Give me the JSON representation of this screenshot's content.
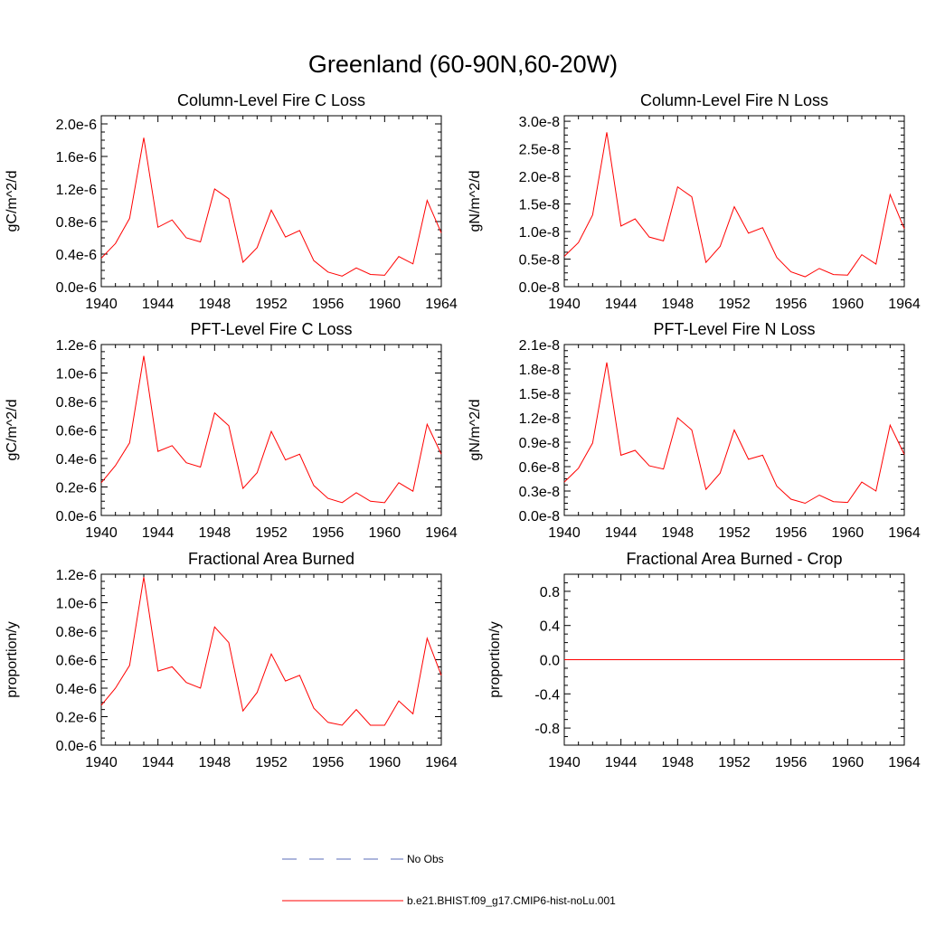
{
  "figure": {
    "title": "Greenland (60-90N,60-20W)",
    "background": "#ffffff",
    "series_color": "#ff0000",
    "obs_color": "#5a6bb8"
  },
  "legend": {
    "items": [
      {
        "label": "No Obs",
        "style": "dashed",
        "color": "#5a6bb8"
      },
      {
        "label": "b.e21.BHIST.f09_g17.CMIP6-hist-noLu.001",
        "style": "solid",
        "color": "#ff0000"
      }
    ]
  },
  "chart_data": [
    {
      "type": "line",
      "title": "Column-Level Fire C Loss",
      "xlabel": "",
      "ylabel": "gC/m^2/d",
      "xlim": [
        1940,
        1964
      ],
      "ylim": [
        0,
        2.1e-06
      ],
      "xticks": [
        1940,
        1944,
        1948,
        1952,
        1956,
        1960,
        1964
      ],
      "xtick_labels": [
        "1940",
        "1944",
        "1948",
        "1952",
        "1956",
        "1960",
        "1964"
      ],
      "yticks": [
        0,
        4e-07,
        8e-07,
        1.2e-06,
        1.6e-06,
        2e-06
      ],
      "ytick_labels": [
        "0.0e-6",
        "0.4e-6",
        "0.8e-6",
        "1.2e-6",
        "1.6e-6",
        "2.0e-6"
      ],
      "grid": false,
      "x": [
        1940,
        1941,
        1942,
        1943,
        1944,
        1945,
        1946,
        1947,
        1948,
        1949,
        1950,
        1951,
        1952,
        1953,
        1954,
        1955,
        1956,
        1957,
        1958,
        1959,
        1960,
        1961,
        1962,
        1963,
        1964
      ],
      "series": [
        {
          "values": [
            3.5e-07,
            5.3e-07,
            8.4e-07,
            1.83e-06,
            7.3e-07,
            8.2e-07,
            6e-07,
            5.5e-07,
            1.2e-06,
            1.08e-06,
            3e-07,
            4.8e-07,
            9.4e-07,
            6.1e-07,
            6.9e-07,
            3.2e-07,
            1.8e-07,
            1.3e-07,
            2.3e-07,
            1.5e-07,
            1.4e-07,
            3.7e-07,
            2.8e-07,
            1.06e-06,
            6.6e-07
          ]
        }
      ]
    },
    {
      "type": "line",
      "title": "Column-Level Fire N Loss",
      "xlabel": "",
      "ylabel": "gN/m^2/d",
      "xlim": [
        1940,
        1964
      ],
      "ylim": [
        0,
        3.1e-08
      ],
      "xticks": [
        1940,
        1944,
        1948,
        1952,
        1956,
        1960,
        1964
      ],
      "xtick_labels": [
        "1940",
        "1944",
        "1948",
        "1952",
        "1956",
        "1960",
        "1964"
      ],
      "yticks": [
        0,
        5e-09,
        1e-08,
        1.5e-08,
        2e-08,
        2.5e-08,
        3e-08
      ],
      "ytick_labels": [
        "0.0e-8",
        "0.5e-8",
        "1.0e-8",
        "1.5e-8",
        "2.0e-8",
        "2.5e-8",
        "3.0e-8"
      ],
      "grid": false,
      "x": [
        1940,
        1941,
        1942,
        1943,
        1944,
        1945,
        1946,
        1947,
        1948,
        1949,
        1950,
        1951,
        1952,
        1953,
        1954,
        1955,
        1956,
        1957,
        1958,
        1959,
        1960,
        1961,
        1962,
        1963,
        1964
      ],
      "series": [
        {
          "values": [
            5.5e-09,
            8e-09,
            1.3e-08,
            2.8e-08,
            1.1e-08,
            1.23e-08,
            9e-09,
            8.3e-09,
            1.81e-08,
            1.63e-08,
            4.4e-09,
            7.3e-09,
            1.45e-08,
            9.7e-09,
            1.07e-08,
            5.3e-09,
            2.7e-09,
            1.8e-09,
            3.3e-09,
            2.2e-09,
            2.1e-09,
            5.8e-09,
            4.1e-09,
            1.67e-08,
            1.05e-08
          ]
        }
      ]
    },
    {
      "type": "line",
      "title": "PFT-Level Fire C Loss",
      "xlabel": "",
      "ylabel": "gC/m^2/d",
      "xlim": [
        1940,
        1964
      ],
      "ylim": [
        0,
        1.2e-06
      ],
      "xticks": [
        1940,
        1944,
        1948,
        1952,
        1956,
        1960,
        1964
      ],
      "xtick_labels": [
        "1940",
        "1944",
        "1948",
        "1952",
        "1956",
        "1960",
        "1964"
      ],
      "yticks": [
        0,
        2e-07,
        4e-07,
        6e-07,
        8e-07,
        1e-06,
        1.2e-06
      ],
      "ytick_labels": [
        "0.0e-6",
        "0.2e-6",
        "0.4e-6",
        "0.6e-6",
        "0.8e-6",
        "1.0e-6",
        "1.2e-6"
      ],
      "grid": false,
      "x": [
        1940,
        1941,
        1942,
        1943,
        1944,
        1945,
        1946,
        1947,
        1948,
        1949,
        1950,
        1951,
        1952,
        1953,
        1954,
        1955,
        1956,
        1957,
        1958,
        1959,
        1960,
        1961,
        1962,
        1963,
        1964
      ],
      "series": [
        {
          "values": [
            2.3e-07,
            3.5e-07,
            5.1e-07,
            1.12e-06,
            4.5e-07,
            4.9e-07,
            3.7e-07,
            3.4e-07,
            7.2e-07,
            6.3e-07,
            1.9e-07,
            3e-07,
            5.9e-07,
            3.9e-07,
            4.3e-07,
            2.1e-07,
            1.2e-07,
            9e-08,
            1.6e-07,
            1e-07,
            9e-08,
            2.3e-07,
            1.7e-07,
            6.4e-07,
            4.3e-07
          ]
        }
      ]
    },
    {
      "type": "line",
      "title": "PFT-Level Fire N Loss",
      "xlabel": "",
      "ylabel": "gN/m^2/d",
      "xlim": [
        1940,
        1964
      ],
      "ylim": [
        0,
        2.1e-08
      ],
      "xticks": [
        1940,
        1944,
        1948,
        1952,
        1956,
        1960,
        1964
      ],
      "xtick_labels": [
        "1940",
        "1944",
        "1948",
        "1952",
        "1956",
        "1960",
        "1964"
      ],
      "yticks": [
        0,
        3e-09,
        6e-09,
        9e-09,
        1.2e-08,
        1.5e-08,
        1.8e-08,
        2.1e-08
      ],
      "ytick_labels": [
        "0.0e-8",
        "0.3e-8",
        "0.6e-8",
        "0.9e-8",
        "1.2e-8",
        "1.5e-8",
        "1.8e-8",
        "2.1e-8"
      ],
      "grid": false,
      "x": [
        1940,
        1941,
        1942,
        1943,
        1944,
        1945,
        1946,
        1947,
        1948,
        1949,
        1950,
        1951,
        1952,
        1953,
        1954,
        1955,
        1956,
        1957,
        1958,
        1959,
        1960,
        1961,
        1962,
        1963,
        1964
      ],
      "series": [
        {
          "values": [
            4.1e-09,
            5.8e-09,
            8.9e-09,
            1.88e-08,
            7.4e-09,
            8e-09,
            6.1e-09,
            5.7e-09,
            1.2e-08,
            1.05e-08,
            3.2e-09,
            5.2e-09,
            1.05e-08,
            6.9e-09,
            7.4e-09,
            3.6e-09,
            2e-09,
            1.5e-09,
            2.5e-09,
            1.7e-09,
            1.6e-09,
            4.1e-09,
            3e-09,
            1.11e-08,
            7.5e-09
          ]
        }
      ]
    },
    {
      "type": "line",
      "title": "Fractional Area Burned",
      "xlabel": "",
      "ylabel": "proportion/y",
      "xlim": [
        1940,
        1964
      ],
      "ylim": [
        0,
        1.2e-06
      ],
      "xticks": [
        1940,
        1944,
        1948,
        1952,
        1956,
        1960,
        1964
      ],
      "xtick_labels": [
        "1940",
        "1944",
        "1948",
        "1952",
        "1956",
        "1960",
        "1964"
      ],
      "yticks": [
        0,
        2e-07,
        4e-07,
        6e-07,
        8e-07,
        1e-06,
        1.2e-06
      ],
      "ytick_labels": [
        "0.0e-6",
        "0.2e-6",
        "0.4e-6",
        "0.6e-6",
        "0.8e-6",
        "1.0e-6",
        "1.2e-6"
      ],
      "grid": false,
      "x": [
        1940,
        1941,
        1942,
        1943,
        1944,
        1945,
        1946,
        1947,
        1948,
        1949,
        1950,
        1951,
        1952,
        1953,
        1954,
        1955,
        1956,
        1957,
        1958,
        1959,
        1960,
        1961,
        1962,
        1963,
        1964
      ],
      "series": [
        {
          "values": [
            2.8e-07,
            4e-07,
            5.6e-07,
            1.18e-06,
            5.2e-07,
            5.5e-07,
            4.4e-07,
            4e-07,
            8.3e-07,
            7.2e-07,
            2.4e-07,
            3.7e-07,
            6.4e-07,
            4.5e-07,
            4.9e-07,
            2.6e-07,
            1.6e-07,
            1.4e-07,
            2.5e-07,
            1.4e-07,
            1.4e-07,
            3.1e-07,
            2.2e-07,
            7.5e-07,
            4.9e-07
          ]
        }
      ]
    },
    {
      "type": "line",
      "title": "Fractional Area Burned - Crop",
      "xlabel": "",
      "ylabel": "proportion/y",
      "xlim": [
        1940,
        1964
      ],
      "ylim": [
        -1.0,
        1.0
      ],
      "xticks": [
        1940,
        1944,
        1948,
        1952,
        1956,
        1960,
        1964
      ],
      "xtick_labels": [
        "1940",
        "1944",
        "1948",
        "1952",
        "1956",
        "1960",
        "1964"
      ],
      "yticks": [
        -0.8,
        -0.4,
        0.0,
        0.4,
        0.8
      ],
      "ytick_labels": [
        "-0.8",
        "-0.4",
        "0.0",
        "0.4",
        "0.8"
      ],
      "grid": false,
      "x": [
        1940,
        1941,
        1942,
        1943,
        1944,
        1945,
        1946,
        1947,
        1948,
        1949,
        1950,
        1951,
        1952,
        1953,
        1954,
        1955,
        1956,
        1957,
        1958,
        1959,
        1960,
        1961,
        1962,
        1963,
        1964
      ],
      "series": [
        {
          "values": [
            0,
            0,
            0,
            0,
            0,
            0,
            0,
            0,
            0,
            0,
            0,
            0,
            0,
            0,
            0,
            0,
            0,
            0,
            0,
            0,
            0,
            0,
            0,
            0,
            0
          ]
        }
      ]
    }
  ]
}
